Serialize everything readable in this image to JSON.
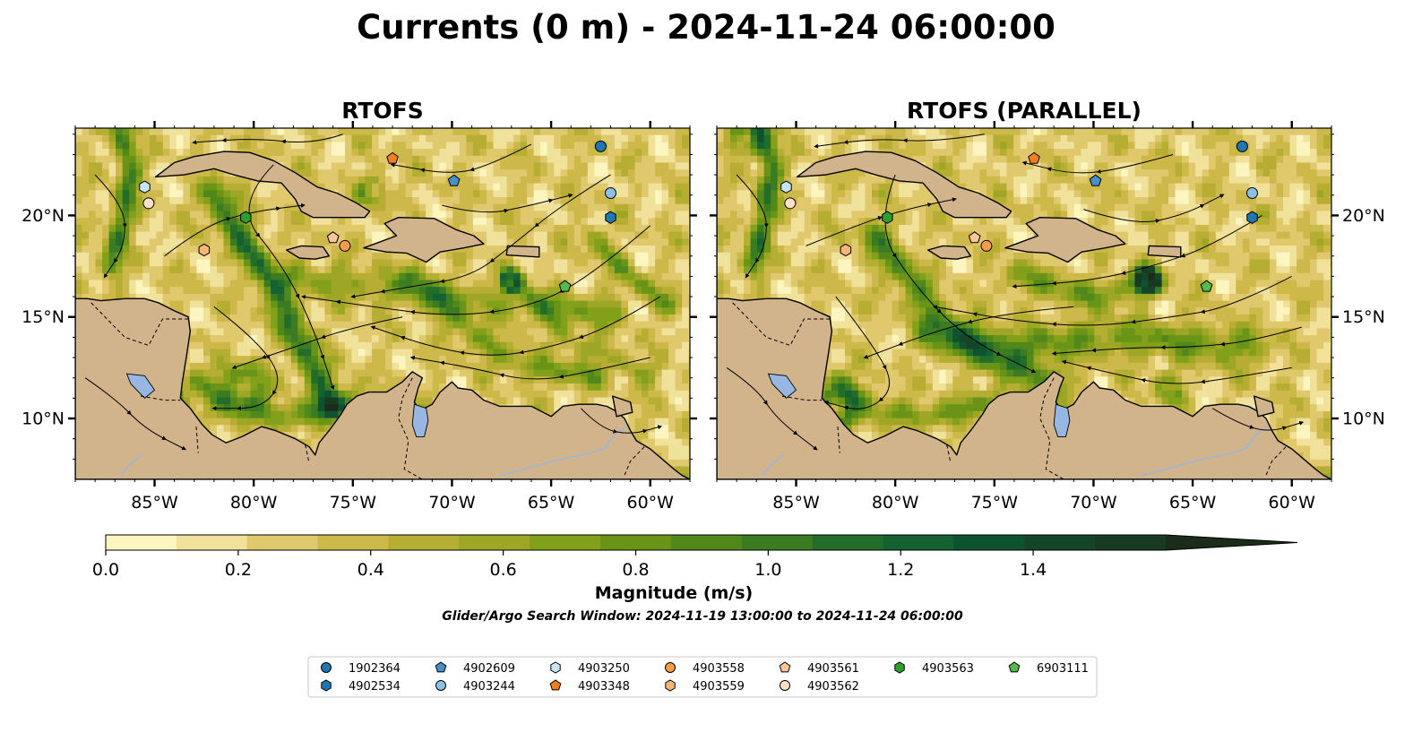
{
  "title": "Currents (0 m) - 2024-11-24 06:00:00",
  "panels": [
    {
      "title": "RTOFS",
      "variant": 0
    },
    {
      "title": "RTOFS (PARALLEL)",
      "variant": 1
    }
  ],
  "map": {
    "lon_range": [
      -89,
      -58
    ],
    "lat_range": [
      7,
      24.3
    ],
    "lon_ticks": [
      {
        "value": -85,
        "label": "85°W"
      },
      {
        "value": -80,
        "label": "80°W"
      },
      {
        "value": -75,
        "label": "75°W"
      },
      {
        "value": -70,
        "label": "70°W"
      },
      {
        "value": -65,
        "label": "65°W"
      },
      {
        "value": -60,
        "label": "60°W"
      }
    ],
    "lat_ticks": [
      {
        "value": 10,
        "label": "10°N"
      },
      {
        "value": 15,
        "label": "15°N"
      },
      {
        "value": 20,
        "label": "20°N"
      }
    ],
    "land_color": "#d2b48c",
    "lake_color": "#97b6e1"
  },
  "colorbar": {
    "label": "Magnitude (m/s)",
    "min": 0.0,
    "max": 1.6,
    "extend": "max",
    "tick_values": [
      0.0,
      0.2,
      0.4,
      0.6,
      0.8,
      1.0,
      1.2,
      1.4
    ],
    "tick_labels": [
      "0.0",
      "0.2",
      "0.4",
      "0.6",
      "0.8",
      "1.0",
      "1.2",
      "1.4"
    ],
    "colors": [
      "#fdf5c0",
      "#f0e29a",
      "#dfc96c",
      "#cdb84a",
      "#b6ad33",
      "#9da725",
      "#83a01a",
      "#6a9417",
      "#51881c",
      "#3b7b22",
      "#236d2b",
      "#146131",
      "#0f5230",
      "#154529",
      "#183a23",
      "#1b2c1a"
    ]
  },
  "search_window": "Glider/Argo Search Window: 2024-11-19 13:00:00 to 2024-11-24 06:00:00",
  "legend": {
    "columns": [
      [
        {
          "id": "1902364",
          "shape": "circle",
          "color": "#1f77b4"
        },
        {
          "id": "4902534",
          "shape": "hexagon",
          "color": "#1f77b4"
        }
      ],
      [
        {
          "id": "4902609",
          "shape": "pentagon",
          "color": "#4a90c8"
        },
        {
          "id": "4903244",
          "shape": "circle",
          "color": "#8ec0e6"
        }
      ],
      [
        {
          "id": "4903250",
          "shape": "hexagon",
          "color": "#c7e4f6"
        },
        {
          "id": "4903348",
          "shape": "pentagon",
          "color": "#f47f1f"
        }
      ],
      [
        {
          "id": "4903558",
          "shape": "circle",
          "color": "#f79b46"
        },
        {
          "id": "4903559",
          "shape": "hexagon",
          "color": "#f9b577"
        }
      ],
      [
        {
          "id": "4903561",
          "shape": "pentagon",
          "color": "#fbc79a"
        },
        {
          "id": "4903562",
          "shape": "circle",
          "color": "#fde0c5"
        }
      ],
      [
        {
          "id": "4903563",
          "shape": "hexagon",
          "color": "#2ca02c"
        }
      ],
      [
        {
          "id": "6903111",
          "shape": "pentagon",
          "color": "#55b94b"
        }
      ]
    ]
  },
  "floats": [
    {
      "id": "1902364",
      "lon": -62.5,
      "lat": 23.4
    },
    {
      "id": "4902534",
      "lon": -62.0,
      "lat": 19.9
    },
    {
      "id": "4902609",
      "lon": -69.9,
      "lat": 21.7
    },
    {
      "id": "4903244",
      "lon": -62.0,
      "lat": 21.1
    },
    {
      "id": "4903250",
      "lon": -85.5,
      "lat": 21.4
    },
    {
      "id": "4903348",
      "lon": -73.0,
      "lat": 22.8
    },
    {
      "id": "4903558",
      "lon": -75.4,
      "lat": 18.5
    },
    {
      "id": "4903559",
      "lon": -82.5,
      "lat": 18.3
    },
    {
      "id": "4903561",
      "lon": -76.0,
      "lat": 18.9
    },
    {
      "id": "4903562",
      "lon": -85.3,
      "lat": 20.6
    },
    {
      "id": "4903563",
      "lon": -80.4,
      "lat": 19.9
    },
    {
      "id": "6903111",
      "lon": -64.3,
      "lat": 16.5
    }
  ]
}
